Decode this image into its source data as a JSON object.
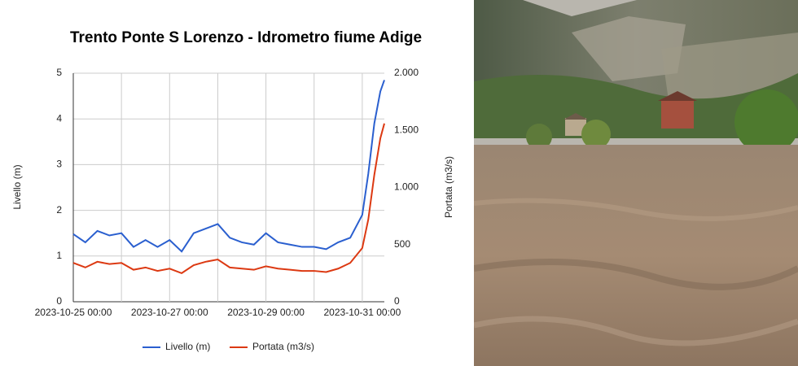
{
  "chart_data": {
    "type": "line",
    "title": "Trento Ponte S Lorenzo - Idrometro fiume Adige",
    "y_label": "Livello (m)",
    "y2_label": "Portata (m3/s)",
    "x": [
      "2023-10-25 00:00",
      "2023-10-25 06:00",
      "2023-10-25 12:00",
      "2023-10-25 18:00",
      "2023-10-26 00:00",
      "2023-10-26 06:00",
      "2023-10-26 12:00",
      "2023-10-26 18:00",
      "2023-10-27 00:00",
      "2023-10-27 06:00",
      "2023-10-27 12:00",
      "2023-10-27 18:00",
      "2023-10-28 00:00",
      "2023-10-28 06:00",
      "2023-10-28 12:00",
      "2023-10-28 18:00",
      "2023-10-29 00:00",
      "2023-10-29 06:00",
      "2023-10-29 12:00",
      "2023-10-29 18:00",
      "2023-10-30 00:00",
      "2023-10-30 06:00",
      "2023-10-30 12:00",
      "2023-10-30 18:00",
      "2023-10-31 00:00",
      "2023-10-31 03:00",
      "2023-10-31 06:00",
      "2023-10-31 09:00",
      "2023-10-31 11:00"
    ],
    "series": [
      {
        "name": "Livello (m)",
        "color": "#2a5fcf",
        "values": [
          1.48,
          1.3,
          1.55,
          1.45,
          1.5,
          1.2,
          1.35,
          1.2,
          1.35,
          1.1,
          1.5,
          1.6,
          1.7,
          1.4,
          1.3,
          1.25,
          1.5,
          1.3,
          1.25,
          1.2,
          1.2,
          1.15,
          1.3,
          1.4,
          1.9,
          2.8,
          3.9,
          4.6,
          4.85
        ]
      },
      {
        "name": "Portata (m3/s)",
        "color": "#dc3912",
        "axis": "y2",
        "values": [
          340,
          300,
          350,
          330,
          340,
          280,
          300,
          270,
          290,
          250,
          320,
          350,
          370,
          300,
          290,
          280,
          310,
          290,
          280,
          270,
          270,
          260,
          290,
          340,
          470,
          720,
          1110,
          1430,
          1560
        ]
      }
    ],
    "xlim": [
      "2023-10-25 00:00",
      "2023-10-31 11:00"
    ],
    "xticks": [
      "2023-10-25 00:00",
      "2023-10-27 00:00",
      "2023-10-29 00:00",
      "2023-10-31 00:00"
    ],
    "minor_xticks": [
      "2023-10-26 00:00",
      "2023-10-28 00:00",
      "2023-10-30 00:00"
    ],
    "ylim": [
      0,
      5
    ],
    "yticks": [
      0,
      1,
      2,
      3,
      4,
      5
    ],
    "y2lim": [
      0,
      2000
    ],
    "y2ticks": [
      0,
      500,
      {
        "value": 1000,
        "label": "1.000"
      },
      {
        "value": 1500,
        "label": "1.500"
      },
      {
        "value": 2000,
        "label": "2.000"
      }
    ],
    "grid": true,
    "legend": "bottom"
  }
}
